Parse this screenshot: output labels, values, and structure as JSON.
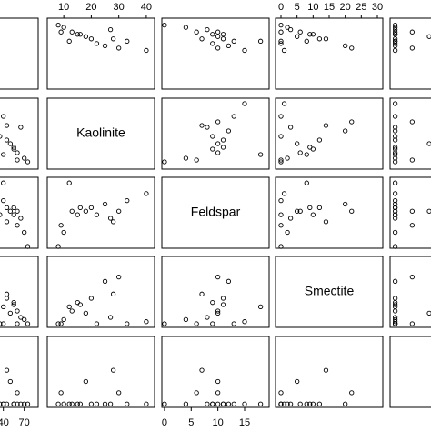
{
  "chart_data": {
    "type": "scatter-matrix",
    "color": "#000000",
    "variables": [
      {
        "values": [
          75,
          70,
          60,
          40,
          55,
          50,
          45,
          35,
          30,
          65,
          25,
          40,
          20,
          45,
          55,
          60
        ],
        "lim": [
          -64,
          90
        ],
        "ticks": [
          40,
          70
        ]
      },
      {
        "name": "Kaolinite",
        "values": [
          8,
          10,
          9,
          12,
          15,
          18,
          20,
          22,
          25,
          27,
          30,
          33,
          40,
          28,
          16,
          13
        ],
        "lim": [
          4,
          43
        ],
        "ticks": [
          10,
          20,
          30,
          40
        ]
      },
      {
        "name": "Feldspar",
        "values": [
          0,
          4,
          6,
          18,
          9,
          10,
          11,
          9,
          12,
          8,
          10,
          13,
          15,
          7,
          11,
          10
        ],
        "lim": [
          -0.5,
          19.6
        ],
        "ticks": [
          0,
          5,
          10,
          15
        ]
      },
      {
        "name": "Smectite",
        "values": [
          0,
          2,
          0,
          8,
          10,
          5,
          12,
          0,
          20,
          3,
          22,
          0,
          1,
          14,
          9,
          6
        ],
        "lim": [
          -1.7,
          31.7
        ],
        "ticks": [
          0,
          5,
          10,
          15,
          20,
          25,
          30
        ]
      },
      {
        "values": [
          0,
          0,
          1,
          0,
          0,
          2,
          0,
          0,
          0,
          0,
          1,
          0,
          0,
          3,
          0,
          0
        ],
        "lim": [
          -0.3,
          6
        ],
        "ticks": []
      }
    ]
  }
}
